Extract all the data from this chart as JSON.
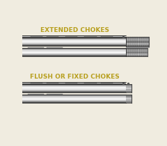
{
  "bg_color": "#f0ece0",
  "title1": "EXTENDED CHOKES",
  "title2": "FLUSH OR FIXED CHOKES",
  "title_color": "#b8a020",
  "title_fontsize": 6.5,
  "barrel_stripes": [
    "#444444",
    "#777777",
    "#aaaaaa",
    "#cccccc",
    "#e8e8e8",
    "#f8f8f8",
    "#f0f0f0",
    "#dddddd",
    "#bbbbbb",
    "#888888",
    "#555555"
  ],
  "rib_color": "#333333",
  "bg_mid": "#d8d0b8",
  "knurl_colors": [
    "#555555",
    "#888888",
    "#aaaaaa",
    "#999999",
    "#777777",
    "#555555",
    "#888888",
    "#aaaaaa",
    "#999999",
    "#777777"
  ]
}
